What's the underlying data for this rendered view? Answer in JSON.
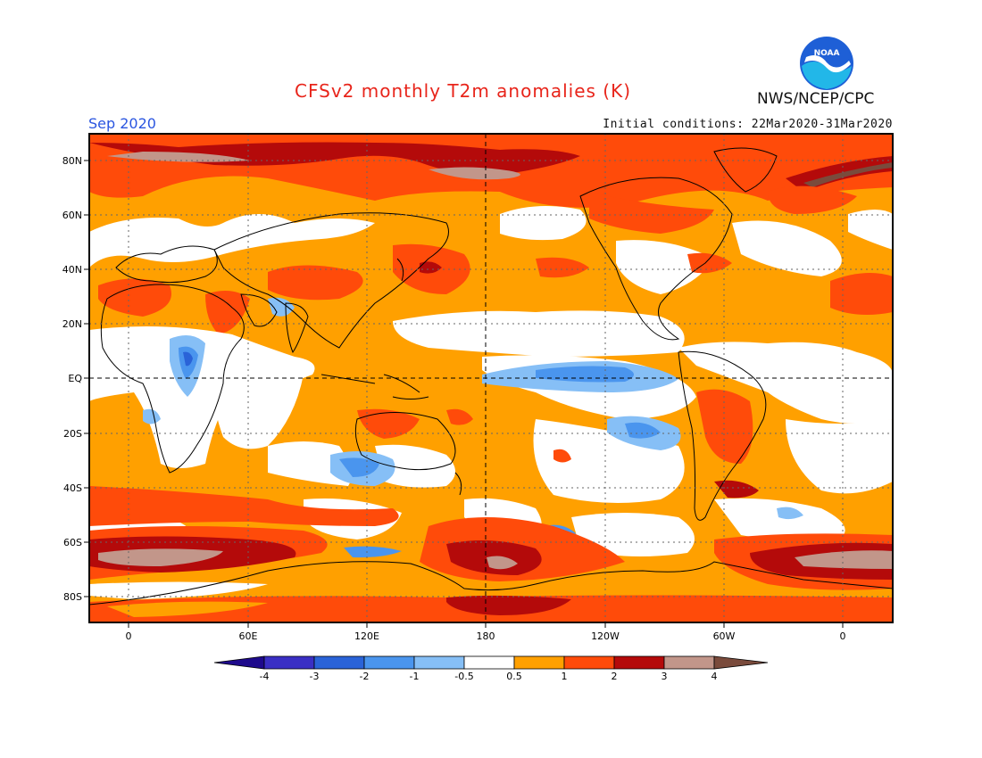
{
  "header": {
    "title": "CFSv2 monthly T2m anomalies (K)",
    "month": "Sep 2020",
    "initial_conditions": "Initial conditions: 22Mar2020-31Mar2020",
    "agency": "NWS/NCEP/CPC",
    "logo_text": "NOAA"
  },
  "map": {
    "lat_labels": [
      "80N",
      "60N",
      "40N",
      "20N",
      "EQ",
      "20S",
      "40S",
      "60S",
      "80S"
    ],
    "lon_labels": [
      "0",
      "60E",
      "120E",
      "180",
      "120W",
      "60W",
      "0"
    ]
  },
  "colorbar": {
    "tick_labels": [
      "-4",
      "-3",
      "-2",
      "-1",
      "-0.5",
      "0.5",
      "1",
      "2",
      "3",
      "4"
    ],
    "colors": [
      "#1e0a8c",
      "#3a2fc4",
      "#2a63d8",
      "#4a95ee",
      "#86bff6",
      "#ffffff",
      "#ffa000",
      "#ff4b0a",
      "#b40a0a",
      "#c2968a",
      "#7a4b3c"
    ]
  }
}
